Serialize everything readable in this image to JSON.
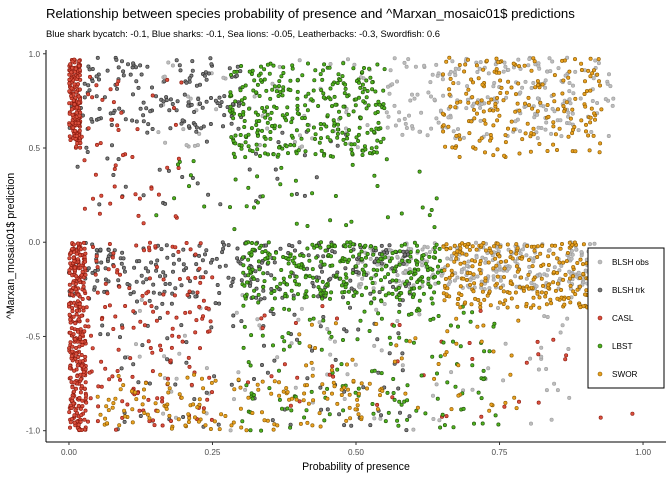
{
  "chart_data": {
    "type": "scatter",
    "title": "Relationship between species probability of presence and ^Marxan_mosaic01$ predictions",
    "subtitle": "Blue shark bycatch: -0.1, Blue sharks: -0.1, Sea lions: -0.05, Leatherbacks: -0.3, Swordfish: 0.6",
    "xlabel": "Probability of presence",
    "ylabel": "^Marxan_mosaic01$ prediction",
    "xlim": [
      -0.04,
      1.04
    ],
    "ylim": [
      -1.06,
      1.02
    ],
    "xticks": [
      0,
      0.25,
      0.5,
      0.75,
      1
    ],
    "xtick_labels": [
      "0.00",
      "0.25",
      "0.50",
      "0.75",
      "1.00"
    ],
    "yticks": [
      -1,
      -0.5,
      0,
      0.5,
      1
    ],
    "ytick_labels": [
      "-1.0",
      "-0.5",
      "0.0",
      "0.5",
      "1.0"
    ],
    "grid": false,
    "legend_position": "right",
    "series": [
      {
        "name": "BLSH obs",
        "color": "#bdbdbd",
        "stroke": "#9e9e9e",
        "clusters": [
          {
            "x": [
              0.55,
              0.95
            ],
            "y": [
              0.55,
              0.98
            ],
            "n": 220
          },
          {
            "x": [
              0.5,
              0.92
            ],
            "y": [
              -0.25,
              0.0
            ],
            "n": 280
          },
          {
            "x": [
              0.1,
              0.9
            ],
            "y": [
              -1.0,
              -0.25
            ],
            "n": 90
          },
          {
            "x": [
              0.15,
              0.55
            ],
            "y": [
              0.5,
              0.98
            ],
            "n": 60
          }
        ]
      },
      {
        "name": "BLSH trk",
        "color": "#7a7a7a",
        "stroke": "#2e2e2e",
        "clusters": [
          {
            "x": [
              0.0,
              0.3
            ],
            "y": [
              0.6,
              0.98
            ],
            "n": 150
          },
          {
            "x": [
              0.0,
              0.5
            ],
            "y": [
              0.2,
              0.6
            ],
            "n": 40
          },
          {
            "x": [
              0.0,
              0.6
            ],
            "y": [
              -0.3,
              0.0
            ],
            "n": 260
          },
          {
            "x": [
              0.05,
              0.6
            ],
            "y": [
              -1.0,
              -0.3
            ],
            "n": 100
          }
        ]
      },
      {
        "name": "CASL",
        "color": "#d94f3d",
        "stroke": "#8b1a0e",
        "clusters": [
          {
            "x": [
              0.0,
              0.02
            ],
            "y": [
              0.5,
              0.98
            ],
            "n": 160
          },
          {
            "x": [
              0.0,
              0.03
            ],
            "y": [
              -1.0,
              0.0
            ],
            "n": 320
          },
          {
            "x": [
              0.02,
              0.25
            ],
            "y": [
              -1.0,
              0.0
            ],
            "n": 160
          },
          {
            "x": [
              0.02,
              0.2
            ],
            "y": [
              0.1,
              0.9
            ],
            "n": 50
          },
          {
            "x": [
              0.3,
              1.0
            ],
            "y": [
              -1.0,
              -0.3
            ],
            "n": 40
          }
        ]
      },
      {
        "name": "LBST",
        "color": "#4fb01e",
        "stroke": "#1f4f08",
        "clusters": [
          {
            "x": [
              0.28,
              0.55
            ],
            "y": [
              0.45,
              0.95
            ],
            "n": 320
          },
          {
            "x": [
              0.3,
              0.65
            ],
            "y": [
              -0.3,
              0.0
            ],
            "n": 300
          },
          {
            "x": [
              0.3,
              0.75
            ],
            "y": [
              -1.0,
              -0.3
            ],
            "n": 150
          },
          {
            "x": [
              0.15,
              0.65
            ],
            "y": [
              0.05,
              0.45
            ],
            "n": 40
          }
        ]
      },
      {
        "name": "SWOR",
        "color": "#e8a020",
        "stroke": "#8a5a00",
        "clusters": [
          {
            "x": [
              0.65,
              0.93
            ],
            "y": [
              0.45,
              0.98
            ],
            "n": 200
          },
          {
            "x": [
              0.65,
              0.92
            ],
            "y": [
              -0.35,
              0.0
            ],
            "n": 260
          },
          {
            "x": [
              0.05,
              0.55
            ],
            "y": [
              -1.0,
              -0.7
            ],
            "n": 140
          },
          {
            "x": [
              0.4,
              0.8
            ],
            "y": [
              -0.9,
              -0.4
            ],
            "n": 50
          }
        ]
      }
    ]
  }
}
